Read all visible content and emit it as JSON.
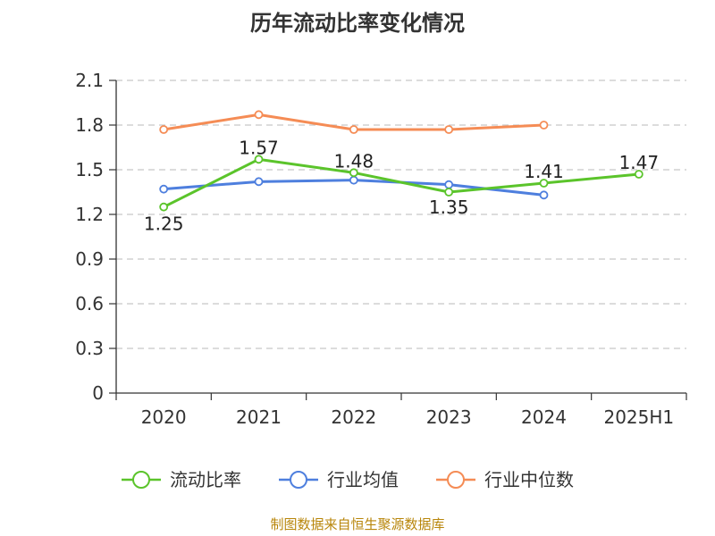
{
  "chart_data": {
    "type": "line",
    "title": "历年流动比率变化情况",
    "categories": [
      "2020",
      "2021",
      "2022",
      "2023",
      "2024",
      "2025H1"
    ],
    "ylim": [
      0,
      2.1
    ],
    "yticks": [
      "0",
      "0.3",
      "0.6",
      "0.9",
      "1.2",
      "1.5",
      "1.8",
      "2.1"
    ],
    "grid": true,
    "legend_position": "bottom",
    "series": [
      {
        "name": "流动比率",
        "color": "#5bc42b",
        "values": [
          1.25,
          1.57,
          1.48,
          1.35,
          1.41,
          1.47
        ],
        "labels": [
          "1.25",
          "1.57",
          "1.48",
          "1.35",
          "1.41",
          "1.47"
        ]
      },
      {
        "name": "行业均值",
        "color": "#4e7fde",
        "values": [
          1.37,
          1.42,
          1.43,
          1.4,
          1.33,
          null
        ]
      },
      {
        "name": "行业中位数",
        "color": "#f58c55",
        "values": [
          1.77,
          1.87,
          1.77,
          1.77,
          1.8,
          null
        ]
      }
    ]
  },
  "source": "制图数据来自恒生聚源数据库"
}
